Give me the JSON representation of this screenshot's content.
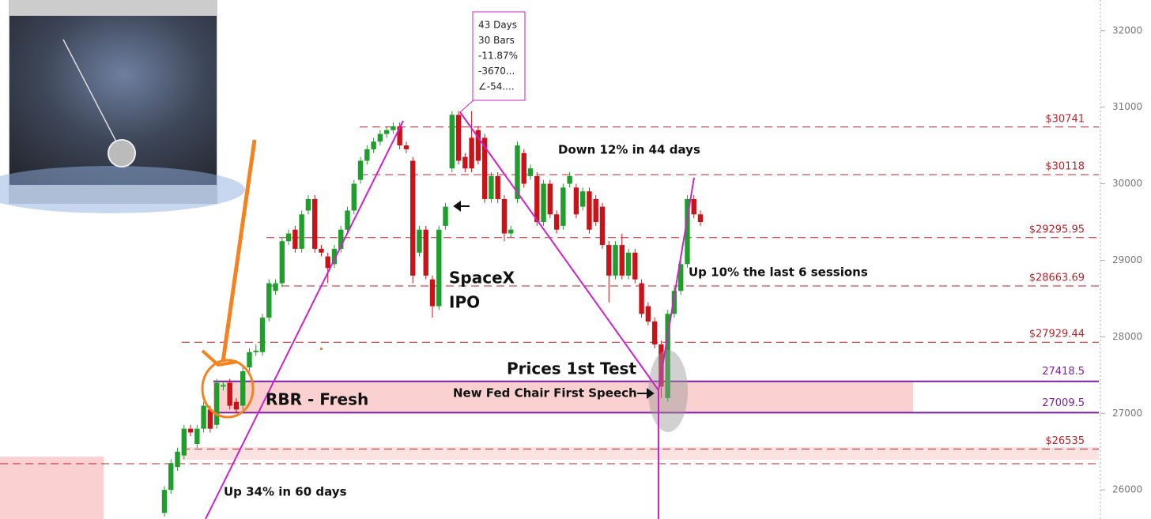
{
  "chart_data": {
    "type": "candlestick",
    "categories": [
      null,
      null,
      null,
      null,
      null,
      null,
      null,
      null,
      null,
      null,
      null,
      null,
      null,
      null,
      null,
      null,
      null,
      null,
      null,
      null,
      null,
      null,
      null,
      null,
      null,
      null,
      null,
      null,
      null,
      null,
      null,
      null,
      null,
      null,
      null,
      null,
      null,
      null,
      null,
      null,
      null,
      null,
      null,
      null,
      null,
      null,
      null,
      null,
      null,
      null,
      null,
      null,
      null,
      null,
      null,
      null,
      null,
      null,
      null,
      null,
      null,
      null,
      null,
      null,
      null,
      null,
      null,
      null,
      null,
      null,
      null,
      null,
      null,
      null,
      null,
      null,
      null,
      null,
      null,
      null,
      null,
      null,
      null
    ],
    "open": [
      25700,
      26000,
      26300,
      26450,
      26800,
      26600,
      26800,
      27050,
      26850,
      27350,
      27400,
      27150,
      27100,
      27600,
      27800,
      27800,
      28250,
      28600,
      28700,
      29250,
      29400,
      29150,
      29650,
      29800,
      29150,
      29050,
      28950,
      29150,
      29400,
      29650,
      30050,
      30300,
      30450,
      30550,
      30650,
      30700,
      30750,
      30500,
      30300,
      29100,
      29400,
      28750,
      28400,
      29450,
      30200,
      30900,
      30350,
      30600,
      30700,
      30600,
      29800,
      30100,
      29800,
      29350,
      29800,
      30400,
      30100,
      30100,
      29500,
      30000,
      29600,
      29450,
      30000,
      29950,
      29700,
      29900,
      29800,
      29700,
      29200,
      28800,
      29200,
      28800,
      29100,
      28700,
      28400,
      28200,
      27900,
      27200,
      28300,
      28600,
      28950,
      29800,
      29600
    ],
    "high": [
      26050,
      26400,
      26550,
      26850,
      26850,
      26850,
      27150,
      27100,
      27450,
      27420,
      27450,
      27200,
      27600,
      27850,
      27900,
      28300,
      28750,
      28750,
      29300,
      29400,
      29450,
      29650,
      29850,
      29850,
      29200,
      29100,
      29200,
      29450,
      29700,
      30050,
      30350,
      30500,
      30600,
      30700,
      30750,
      30800,
      30800,
      30550,
      30350,
      29450,
      29450,
      28800,
      29450,
      29750,
      30950,
      30950,
      30400,
      30950,
      30750,
      30650,
      30150,
      30150,
      29850,
      29450,
      30550,
      30450,
      30250,
      30150,
      30050,
      30050,
      29650,
      30000,
      30150,
      30000,
      29950,
      29950,
      29850,
      29750,
      29250,
      29250,
      29350,
      29150,
      29150,
      28750,
      28450,
      28250,
      27950,
      28350,
      28650,
      29000,
      29850,
      29850,
      29650
    ],
    "low": [
      25650,
      25950,
      26250,
      26400,
      26700,
      26550,
      26750,
      26750,
      26800,
      27300,
      27050,
      27000,
      27050,
      27550,
      27750,
      27750,
      28200,
      28550,
      28650,
      29200,
      29100,
      29100,
      29600,
      29100,
      29050,
      28700,
      28900,
      29100,
      29350,
      29600,
      30000,
      30250,
      30400,
      30500,
      30600,
      30650,
      30450,
      30400,
      28700,
      29050,
      28750,
      28250,
      28350,
      29400,
      30150,
      30250,
      30150,
      30150,
      30250,
      29750,
      29750,
      29750,
      29250,
      29300,
      29750,
      29950,
      30050,
      29450,
      29450,
      29550,
      29350,
      29400,
      29950,
      29550,
      29650,
      29350,
      29450,
      29150,
      28450,
      28750,
      28750,
      28750,
      28700,
      28250,
      28150,
      27850,
      27200,
      27150,
      28250,
      28550,
      28900,
      29550,
      29450
    ],
    "close": [
      26000,
      26350,
      26500,
      26800,
      26750,
      26800,
      27100,
      26800,
      27400,
      27370,
      27100,
      27050,
      27550,
      27800,
      27820,
      28250,
      28700,
      28700,
      29250,
      29350,
      29150,
      29600,
      29800,
      29150,
      29100,
      28900,
      29150,
      29400,
      29650,
      30000,
      30300,
      30450,
      30550,
      30650,
      30700,
      30750,
      30500,
      30450,
      28800,
      29400,
      28800,
      28400,
      29400,
      29700,
      30900,
      30300,
      30200,
      30200,
      30300,
      29800,
      30100,
      29800,
      29350,
      29400,
      30500,
      30000,
      30200,
      29500,
      30000,
      29600,
      29400,
      29950,
      30100,
      29600,
      29900,
      29400,
      29500,
      29200,
      28800,
      29200,
      28800,
      29100,
      28750,
      28300,
      28200,
      27900,
      27350,
      28300,
      28600,
      28950,
      29800,
      29600,
      29500
    ],
    "up_color": "#1e9e2a",
    "down_color": "#cc1219",
    "ylim": [
      25620,
      32400
    ],
    "yticks": [
      26000,
      27000,
      28000,
      29000,
      30000,
      31000,
      32000
    ],
    "levels": [
      {
        "value": 30741,
        "label": "$30741"
      },
      {
        "value": 30118,
        "label": "$30118"
      },
      {
        "value": 29295.95,
        "label": "$29295.95"
      },
      {
        "value": 28663.69,
        "label": "$28663.69"
      },
      {
        "value": 27929.44,
        "label": "$27929.44"
      },
      {
        "value": 26535,
        "label": "$26535"
      }
    ],
    "level_color": "#b3262e",
    "zone": [
      {
        "value": 27418.5,
        "label": "27418.5"
      },
      {
        "value": 27009.5,
        "label": "27009.5"
      }
    ],
    "zone_color": "#7b1fa2",
    "annotations": {
      "down": "Down 12% in 44 days",
      "up_recent": "Up 10% the last 6 sessions",
      "spacex": "SpaceX",
      "ipo": "IPO",
      "test": "Prices 1st Test",
      "fed": "New Fed Chair First Speech",
      "rbr": "RBR - Fresh",
      "up_early": "Up 34% in 60 days",
      "measure": [
        "43 Days",
        "30 Bars",
        "-11.87%",
        "-3670...",
        "∠-54...."
      ]
    }
  }
}
